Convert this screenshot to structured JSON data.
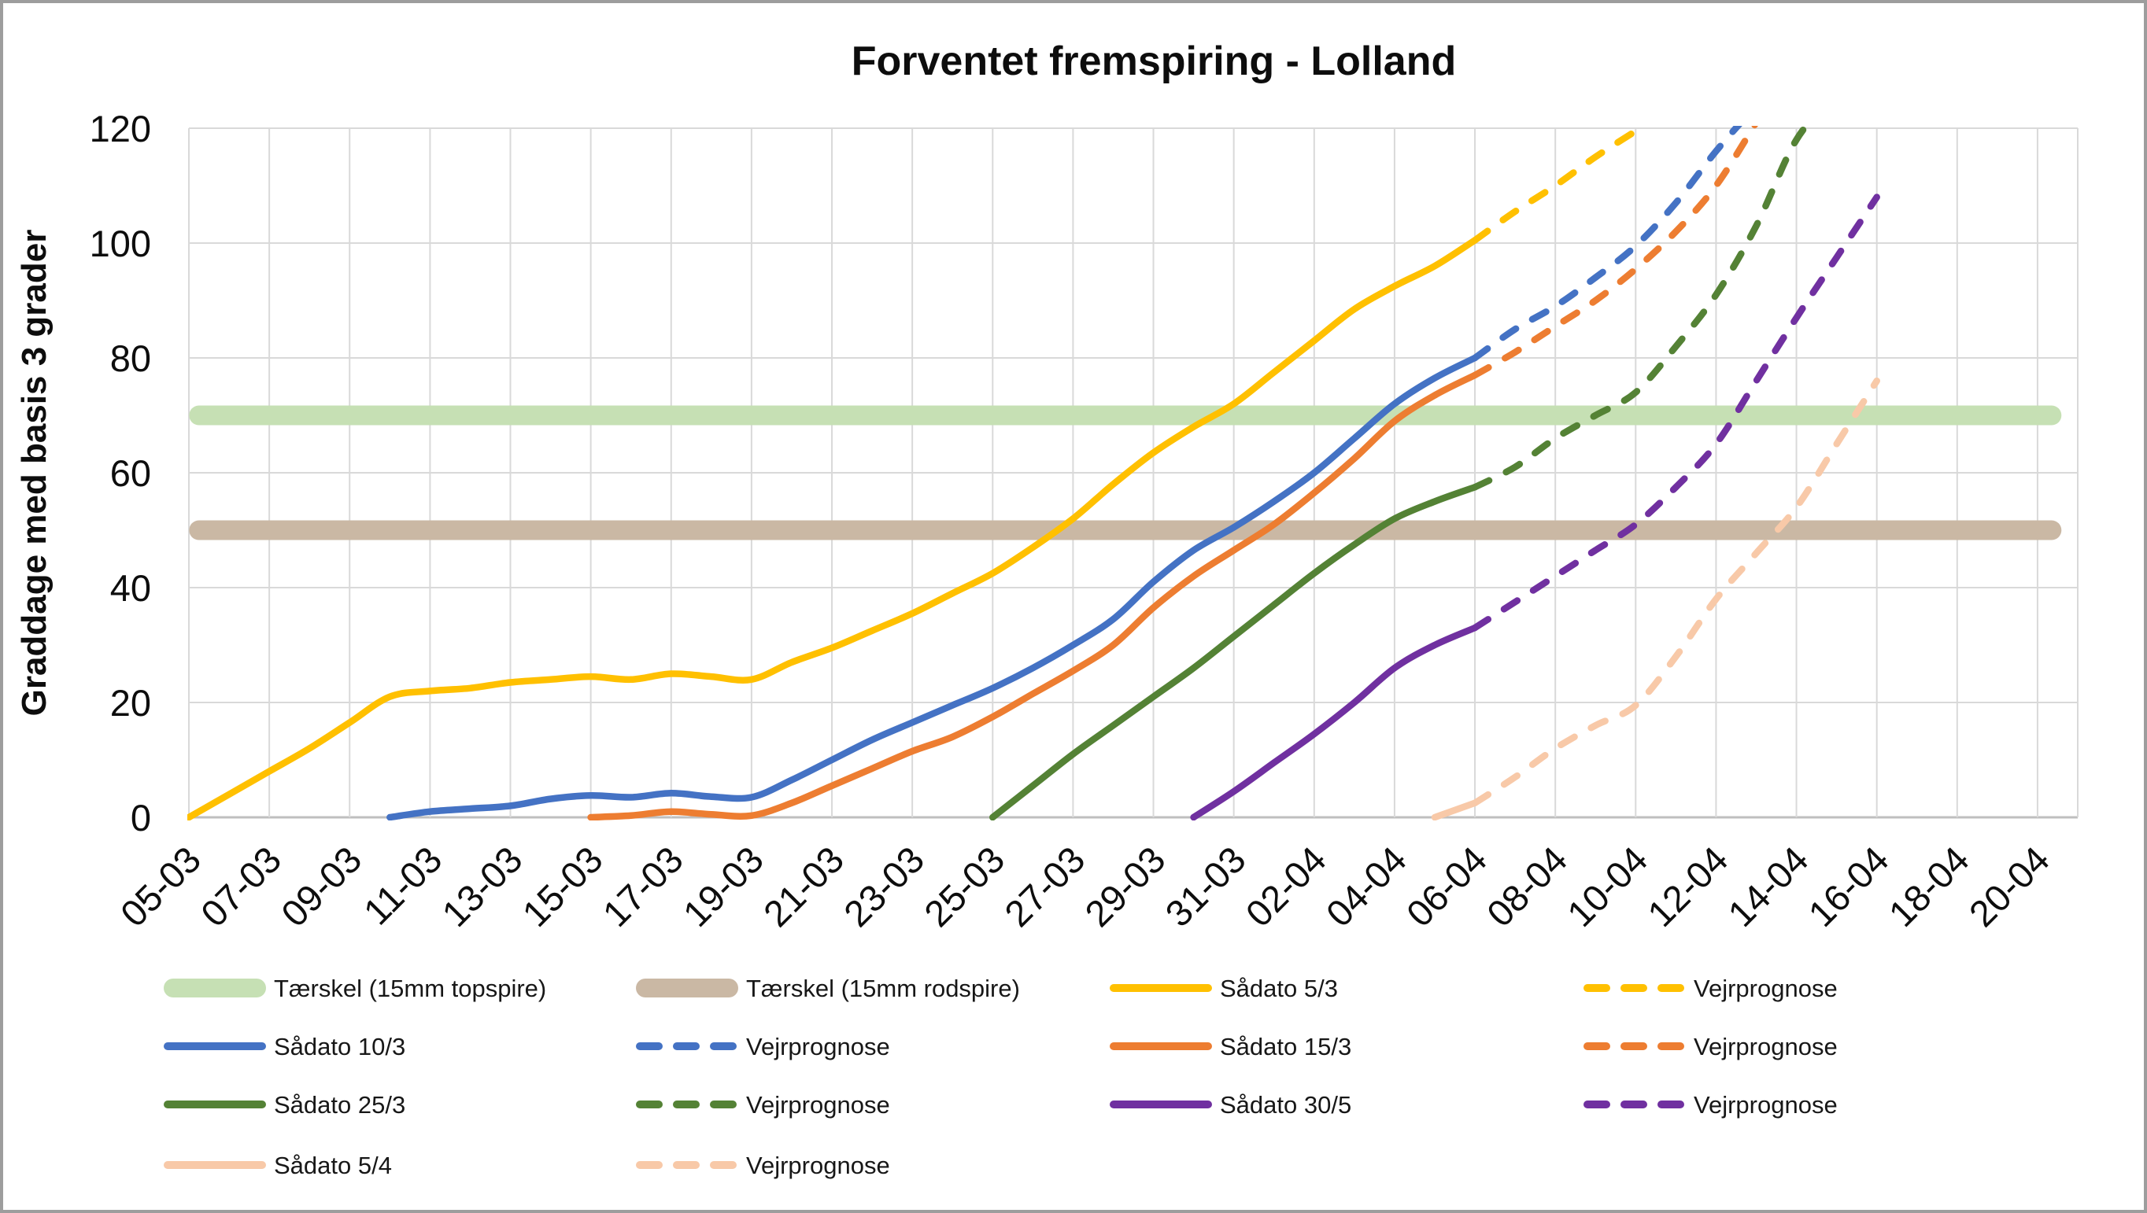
{
  "window": {
    "background": "#ffffff",
    "frame_border_color": "#9d9d9d"
  },
  "chart_data": {
    "type": "line",
    "title": "Forventet fremspiring - Lolland",
    "xlabel": "",
    "ylabel": "Graddage med basis 3 grader",
    "ylim": [
      0,
      120
    ],
    "y_ticks": [
      0,
      20,
      40,
      60,
      80,
      100,
      120
    ],
    "x_tick_labels": [
      "05-03",
      "07-03",
      "09-03",
      "11-03",
      "13-03",
      "15-03",
      "17-03",
      "19-03",
      "21-03",
      "23-03",
      "25-03",
      "27-03",
      "29-03",
      "31-03",
      "02-04",
      "04-04",
      "06-04",
      "08-04",
      "10-04",
      "12-04",
      "14-04",
      "16-04",
      "18-04",
      "20-04"
    ],
    "x_days_total": 47,
    "grid": true,
    "gridline_color": "#d9d9d9",
    "axis_line_color": "#bfbfbf",
    "legend_position": "bottom",
    "forecast_start_label": "06-04",
    "thresholds": [
      {
        "key": "taerskel-topspire",
        "label": "Tærskel (15mm topspire)",
        "value": 70,
        "color": "#c6e0b4",
        "start_day": 0.25,
        "end_day": 46.35
      },
      {
        "key": "taerskel-rodspire",
        "label": "Tærskel (15mm rodspire)",
        "value": 50,
        "color": "#cab8a4",
        "start_day": 0.25,
        "end_day": 46.35
      }
    ],
    "series": [
      {
        "key": "saadato-5-3",
        "name": "Sådato 5/3",
        "color": "#ffc000",
        "style": "solid",
        "start_day": 0,
        "values": [
          0,
          4,
          8,
          12,
          16.5,
          21,
          22,
          22.5,
          23.5,
          24,
          24.5,
          24,
          25,
          24.5,
          24,
          27,
          29.5,
          32.5,
          35.5,
          39,
          42.5,
          47,
          52,
          58,
          63.5,
          68,
          72,
          77.5,
          83,
          88.5,
          92.5,
          96,
          100.5
        ]
      },
      {
        "key": "vejrprognose-5-3",
        "name": "Vejrprognose",
        "color": "#ffc000",
        "style": "dashed",
        "start_day": 32,
        "values": [
          100.5,
          105.5,
          110,
          115,
          119.5
        ]
      },
      {
        "key": "saadato-10-3",
        "name": "Sådato 10/3",
        "color": "#4472c4",
        "style": "solid",
        "start_day": 5,
        "values": [
          0,
          1,
          1.5,
          2,
          3.2,
          3.8,
          3.5,
          4.2,
          3.6,
          3.5,
          6.5,
          10,
          13.5,
          16.5,
          19.5,
          22.5,
          26,
          30,
          34.5,
          41,
          46.5,
          50.5,
          55,
          60,
          66,
          72,
          76.5,
          80
        ]
      },
      {
        "key": "vejrprognose-10-3",
        "name": "Vejrprognose",
        "color": "#4472c4",
        "style": "dashed",
        "start_day": 32,
        "values": [
          80,
          85,
          89,
          94,
          99.5,
          107,
          116,
          124
        ]
      },
      {
        "key": "saadato-15-3",
        "name": "Sådato 15/3",
        "color": "#ed7d31",
        "style": "solid",
        "start_day": 10,
        "values": [
          0,
          0.3,
          1,
          0.5,
          0.3,
          2.5,
          5.5,
          8.5,
          11.5,
          14,
          17.5,
          21.5,
          25.5,
          30,
          36.5,
          42,
          46.5,
          51,
          56.5,
          62.5,
          69,
          73.5,
          77
        ]
      },
      {
        "key": "vejrprognose-15-3",
        "name": "Vejrprognose",
        "color": "#ed7d31",
        "style": "dashed",
        "start_day": 32,
        "values": [
          77,
          81,
          85.5,
          90,
          95.5,
          102,
          110,
          121
        ]
      },
      {
        "key": "saadato-25-3",
        "name": "Sådato 25/3",
        "color": "#548235",
        "style": "solid",
        "start_day": 20,
        "values": [
          0,
          5.5,
          11,
          16,
          21,
          26,
          31.5,
          37,
          42.5,
          47.5,
          52,
          55,
          57.5
        ]
      },
      {
        "key": "vejrprognose-25-3",
        "name": "Vejrprognose",
        "color": "#548235",
        "style": "dashed",
        "start_day": 32,
        "values": [
          57.5,
          61,
          66,
          70,
          74,
          82,
          91,
          103,
          118,
          126
        ]
      },
      {
        "key": "saadato-30-5",
        "name": "Sådato 30/5",
        "color": "#7030a0",
        "style": "solid",
        "start_day": 25,
        "values": [
          0,
          4.5,
          9.5,
          14.5,
          20,
          26,
          30,
          33
        ]
      },
      {
        "key": "vejrprognose-30-5",
        "name": "Vejrprognose",
        "color": "#7030a0",
        "style": "dashed",
        "start_day": 32,
        "values": [
          33,
          37.5,
          42,
          46.5,
          51,
          57.5,
          65,
          76,
          87,
          97.5,
          108
        ]
      },
      {
        "key": "saadato-5-4",
        "name": "Sådato 5/4",
        "color": "#f8c9a8",
        "style": "solid",
        "start_day": 31,
        "values": [
          0,
          2.5
        ]
      },
      {
        "key": "vejrprognose-5-4",
        "name": "Vejrprognose",
        "color": "#f8c9a8",
        "style": "dashed",
        "start_day": 32,
        "values": [
          2.5,
          7,
          12,
          16,
          19.5,
          28,
          38,
          46,
          54,
          65,
          76
        ]
      }
    ],
    "legend_rows": [
      [
        {
          "key": "taerskel-topspire",
          "swatch": "band",
          "color": "#c6e0b4",
          "label": "Tærskel (15mm topspire)"
        },
        {
          "key": "taerskel-rodspire",
          "swatch": "band",
          "color": "#cab8a4",
          "label": "Tærskel (15mm rodspire)"
        },
        {
          "key": "saadato-5-3",
          "swatch": "line",
          "color": "#ffc000",
          "label": "Sådato 5/3"
        },
        {
          "key": "vejrprognose-5-3",
          "swatch": "dash",
          "color": "#ffc000",
          "label": "Vejrprognose"
        }
      ],
      [
        {
          "key": "saadato-10-3",
          "swatch": "line",
          "color": "#4472c4",
          "label": "Sådato 10/3"
        },
        {
          "key": "vejrprognose-10-3",
          "swatch": "dash",
          "color": "#4472c4",
          "label": "Vejrprognose"
        },
        {
          "key": "saadato-15-3",
          "swatch": "line",
          "color": "#ed7d31",
          "label": "Sådato 15/3"
        },
        {
          "key": "vejrprognose-15-3",
          "swatch": "dash",
          "color": "#ed7d31",
          "label": "Vejrprognose"
        }
      ],
      [
        {
          "key": "saadato-25-3",
          "swatch": "line",
          "color": "#548235",
          "label": "Sådato 25/3"
        },
        {
          "key": "vejrprognose-25-3",
          "swatch": "dash",
          "color": "#548235",
          "label": "Vejrprognose"
        },
        {
          "key": "saadato-30-5",
          "swatch": "line",
          "color": "#7030a0",
          "label": "Sådato 30/5"
        },
        {
          "key": "vejrprognose-30-5",
          "swatch": "dash",
          "color": "#7030a0",
          "label": "Vejrprognose"
        }
      ],
      [
        {
          "key": "saadato-5-4",
          "swatch": "line",
          "color": "#f8c9a8",
          "label": "Sådato 5/4"
        },
        {
          "key": "vejrprognose-5-4",
          "swatch": "dash",
          "color": "#f8c9a8",
          "label": "Vejrprognose"
        }
      ]
    ],
    "layout": {
      "plot": {
        "x0": 240,
        "x1": 2640,
        "y_bottom": 1039,
        "y_top": 163
      },
      "title_x": 1466,
      "title_y": 95,
      "y_axis_title_x": 58,
      "y_axis_title_y": 601,
      "legend_col_x": [
        208,
        808,
        1410,
        2012
      ],
      "legend_row_y": [
        1256,
        1330,
        1404,
        1481
      ],
      "legend_swatch_length": 130,
      "legend_label_offset": 140
    }
  }
}
